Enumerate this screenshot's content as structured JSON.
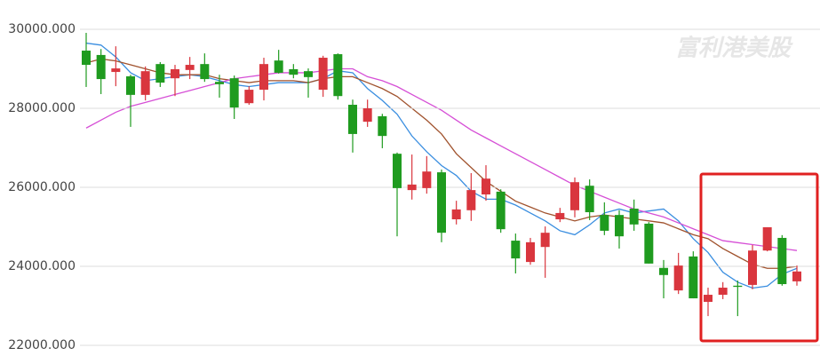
{
  "chart_data": {
    "type": "candlestick",
    "watermark": "富利港美股",
    "ylim": [
      22000,
      30000
    ],
    "yticks": [
      {
        "value": 22000,
        "label": "22000.000"
      },
      {
        "value": 24000,
        "label": "24000.000"
      },
      {
        "value": 26000,
        "label": "26000.000"
      },
      {
        "value": 28000,
        "label": "28000.000"
      },
      {
        "value": 30000,
        "label": "30000.000"
      }
    ],
    "grid": true,
    "up_color": "#d9363e",
    "down_color": "#1f9b1f",
    "open": [
      29460,
      29350,
      28920,
      28810,
      28340,
      29120,
      28760,
      28970,
      29120,
      28670,
      28760,
      28130,
      28470,
      29210,
      28990,
      28940,
      28470,
      29370,
      28090,
      27660,
      27800,
      26850,
      25930,
      25980,
      26380,
      25190,
      25420,
      25820,
      25890,
      24650,
      24110,
      24490,
      25190,
      25420,
      26040,
      25300,
      25300,
      25460,
      25080,
      23960,
      23390,
      24250,
      23100,
      23280,
      23510,
      23530,
      24400,
      24720,
      23620
    ],
    "high": [
      29910,
      29500,
      29570,
      28850,
      29060,
      29170,
      29100,
      29300,
      29390,
      28850,
      28830,
      28560,
      29280,
      29480,
      29120,
      29010,
      29330,
      29390,
      28220,
      28220,
      27860,
      26880,
      26830,
      26790,
      26450,
      25660,
      26360,
      26560,
      25950,
      24830,
      24720,
      25010,
      25480,
      26250,
      26200,
      25620,
      25420,
      25690,
      25120,
      24160,
      24340,
      24380,
      23460,
      23600,
      23640,
      24540,
      24990,
      24790,
      24020
    ],
    "low": [
      28540,
      28360,
      28560,
      27530,
      28200,
      28540,
      28310,
      28740,
      28670,
      28270,
      27730,
      28090,
      28200,
      28880,
      28760,
      28270,
      28290,
      28220,
      26880,
      27530,
      26990,
      24760,
      25690,
      25840,
      24610,
      25060,
      25150,
      25660,
      24850,
      23820,
      24040,
      23710,
      25120,
      25240,
      25170,
      24790,
      24450,
      24900,
      24070,
      23190,
      23300,
      23190,
      22740,
      23170,
      22740,
      23420,
      24380,
      23510,
      23510
    ],
    "close": [
      29100,
      28740,
      29010,
      28340,
      28940,
      28650,
      28990,
      29100,
      28740,
      28610,
      28020,
      28470,
      29120,
      28900,
      28850,
      28790,
      29280,
      28310,
      27350,
      28000,
      27300,
      25980,
      26070,
      26400,
      24850,
      25440,
      25930,
      26220,
      24940,
      24200,
      24610,
      24850,
      25350,
      26130,
      25370,
      24900,
      24760,
      25060,
      24070,
      23780,
      24020,
      23190,
      23280,
      23460,
      23480,
      24400,
      24990,
      23550,
      23870
    ],
    "series": [
      {
        "color": "#3a8ee0",
        "values": [
          29650,
          29600,
          29300,
          28900,
          28700,
          28750,
          28800,
          28850,
          28800,
          28700,
          28600,
          28550,
          28600,
          28650,
          28650,
          28650,
          28750,
          28950,
          28900,
          28500,
          28200,
          27850,
          27300,
          26900,
          26550,
          26300,
          25900,
          25700,
          25700,
          25550,
          25350,
          25150,
          24900,
          24800,
          25050,
          25350,
          25450,
          25350,
          25400,
          25450,
          25150,
          24700,
          24350,
          23850,
          23600,
          23450,
          23500,
          23800,
          23950
        ]
      },
      {
        "color": "#a0522d",
        "values": [
          29150,
          29250,
          29200,
          29100,
          29000,
          28900,
          28850,
          28850,
          28850,
          28750,
          28700,
          28650,
          28700,
          28700,
          28700,
          28650,
          28750,
          28800,
          28800,
          28650,
          28500,
          28300,
          28000,
          27700,
          27350,
          26850,
          26500,
          26150,
          25900,
          25650,
          25500,
          25350,
          25250,
          25150,
          25250,
          25300,
          25250,
          25200,
          25150,
          25100,
          24950,
          24800,
          24700,
          24450,
          24250,
          24050,
          23950,
          23950,
          24000
        ]
      },
      {
        "color": "#d64fd6",
        "values": [
          27500,
          27700,
          27900,
          28050,
          28150,
          28250,
          28350,
          28450,
          28550,
          28650,
          28750,
          28800,
          28850,
          28900,
          28900,
          28900,
          28950,
          29000,
          29000,
          28800,
          28700,
          28550,
          28350,
          28150,
          27950,
          27700,
          27450,
          27250,
          27050,
          26850,
          26650,
          26450,
          26250,
          26050,
          25900,
          25750,
          25600,
          25450,
          25350,
          25250,
          25100,
          24950,
          24800,
          24650,
          24600,
          24550,
          24500,
          24450,
          24400
        ]
      }
    ]
  }
}
